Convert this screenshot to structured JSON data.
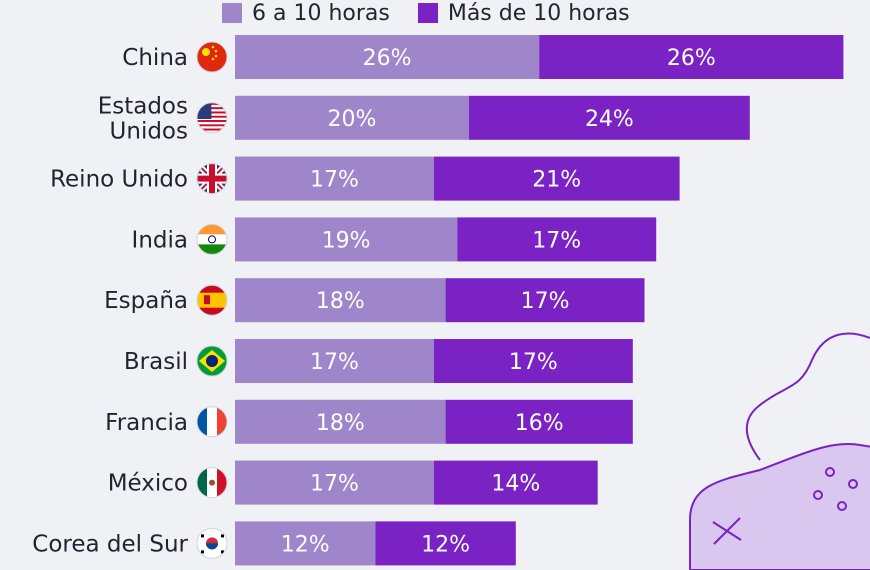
{
  "chart_data": {
    "type": "bar",
    "orientation": "horizontal",
    "stacked": true,
    "categories": [
      [
        "China"
      ],
      [
        "Estados",
        "Unidos"
      ],
      [
        "Reino Unido"
      ],
      [
        "India"
      ],
      [
        "España"
      ],
      [
        "Brasil"
      ],
      [
        "Francia"
      ],
      [
        "México"
      ],
      [
        "Corea del Sur"
      ]
    ],
    "series": [
      {
        "name": "6 a 10 horas",
        "values": [
          26,
          20,
          17,
          19,
          18,
          17,
          18,
          17,
          12
        ],
        "color": "#9f85c9"
      },
      {
        "name": "Más de 10 horas",
        "values": [
          26,
          24,
          21,
          17,
          17,
          17,
          16,
          14,
          12
        ],
        "color": "#7a22c3"
      }
    ],
    "value_suffix": "%",
    "legend_position": "top",
    "grid": false,
    "flag_icons": [
      "china-flag-icon",
      "usa-flag-icon",
      "uk-flag-icon",
      "india-flag-icon",
      "spain-flag-icon",
      "brazil-flag-icon",
      "france-flag-icon",
      "mexico-flag-icon",
      "south-korea-flag-icon"
    ]
  },
  "decoration": {
    "icon": "gamepad-icon",
    "color": "#d9c7f0",
    "stroke": "#7a22c3"
  }
}
